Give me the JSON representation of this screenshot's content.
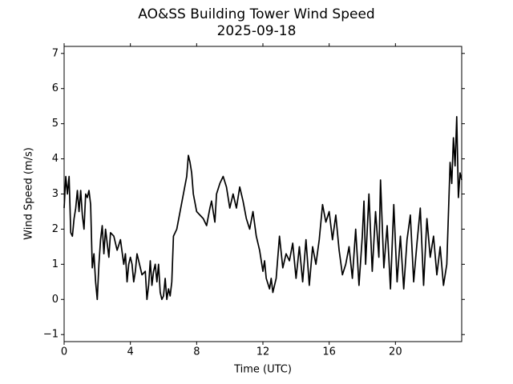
{
  "chart_data": {
    "type": "line",
    "title": "AO&SS Building Tower Wind Speed",
    "subtitle": "2025-09-18",
    "x_label": "Time (UTC)",
    "y_label": "Wind Speed (m/s)",
    "xlim": [
      0,
      24
    ],
    "ylim": [
      -1.2,
      7.2
    ],
    "xticks": [
      0,
      4,
      8,
      12,
      16,
      20
    ],
    "yticks": [
      {
        "value": -1,
        "label": "−1"
      },
      0,
      1,
      2,
      3,
      4,
      5,
      6,
      7
    ],
    "series": [
      {
        "color": "#000000",
        "x": [
          0,
          0.1,
          0.2,
          0.3,
          0.4,
          0.5,
          0.6,
          0.7,
          0.8,
          0.9,
          1.0,
          1.1,
          1.2,
          1.3,
          1.4,
          1.5,
          1.6,
          1.7,
          1.8,
          1.9,
          2.0,
          2.1,
          2.2,
          2.3,
          2.4,
          2.5,
          2.6,
          2.7,
          2.8,
          3.0,
          3.2,
          3.4,
          3.6,
          3.7,
          3.8,
          3.9,
          4.0,
          4.1,
          4.2,
          4.3,
          4.4,
          4.5,
          4.6,
          4.7,
          4.9,
          5.0,
          5.1,
          5.2,
          5.3,
          5.4,
          5.5,
          5.6,
          5.7,
          5.8,
          5.9,
          6.0,
          6.1,
          6.2,
          6.3,
          6.4,
          6.5,
          6.6,
          6.8,
          7.0,
          7.2,
          7.4,
          7.5,
          7.6,
          7.7,
          7.8,
          8.0,
          8.2,
          8.4,
          8.6,
          8.8,
          8.9,
          9.0,
          9.1,
          9.2,
          9.4,
          9.6,
          9.8,
          10.0,
          10.2,
          10.4,
          10.6,
          10.8,
          11.0,
          11.2,
          11.4,
          11.6,
          11.8,
          12.0,
          12.1,
          12.2,
          12.4,
          12.5,
          12.6,
          12.8,
          13.0,
          13.2,
          13.4,
          13.6,
          13.8,
          14.0,
          14.2,
          14.4,
          14.6,
          14.8,
          15.0,
          15.2,
          15.4,
          15.6,
          15.8,
          16.0,
          16.2,
          16.4,
          16.6,
          16.8,
          17.0,
          17.2,
          17.4,
          17.6,
          17.8,
          18.0,
          18.1,
          18.2,
          18.4,
          18.6,
          18.8,
          19.0,
          19.1,
          19.3,
          19.5,
          19.7,
          19.9,
          20.1,
          20.3,
          20.5,
          20.7,
          20.9,
          21.1,
          21.3,
          21.5,
          21.7,
          21.9,
          22.1,
          22.3,
          22.5,
          22.7,
          22.9,
          23.1,
          23.3,
          23.4,
          23.5,
          23.6,
          23.7,
          23.8,
          23.9,
          24.0
        ],
        "values": [
          2.6,
          3.5,
          3.0,
          3.5,
          1.9,
          1.8,
          2.3,
          2.6,
          3.1,
          2.5,
          3.1,
          2.4,
          2.0,
          3.0,
          2.9,
          3.1,
          2.7,
          0.9,
          1.3,
          0.5,
          0.0,
          1.0,
          1.7,
          2.1,
          1.3,
          2.0,
          1.6,
          1.2,
          1.9,
          1.8,
          1.4,
          1.7,
          1.0,
          1.3,
          0.5,
          1.0,
          1.2,
          1.0,
          0.5,
          0.8,
          1.3,
          1.1,
          0.9,
          0.7,
          0.8,
          0.0,
          0.4,
          1.1,
          0.4,
          0.8,
          1.0,
          0.5,
          1.0,
          0.2,
          0.0,
          0.1,
          0.6,
          0.0,
          0.3,
          0.1,
          0.5,
          1.8,
          2.0,
          2.5,
          3.0,
          3.5,
          4.1,
          3.9,
          3.6,
          3.0,
          2.5,
          2.4,
          2.3,
          2.1,
          2.6,
          2.8,
          2.5,
          2.2,
          3.0,
          3.3,
          3.5,
          3.2,
          2.6,
          3.0,
          2.6,
          3.2,
          2.8,
          2.3,
          2.0,
          2.5,
          1.8,
          1.4,
          0.8,
          1.1,
          0.6,
          0.3,
          0.6,
          0.2,
          0.6,
          1.8,
          0.9,
          1.3,
          1.1,
          1.6,
          0.6,
          1.5,
          0.5,
          1.7,
          0.4,
          1.5,
          1.0,
          1.7,
          2.7,
          2.2,
          2.5,
          1.7,
          2.4,
          1.4,
          0.7,
          1.0,
          1.5,
          0.6,
          2.0,
          0.4,
          1.8,
          2.8,
          1.0,
          3.0,
          0.8,
          2.5,
          1.2,
          3.4,
          0.9,
          2.1,
          0.3,
          2.7,
          0.5,
          1.8,
          0.3,
          1.7,
          2.4,
          0.5,
          1.6,
          2.6,
          0.4,
          2.3,
          1.2,
          1.8,
          0.7,
          1.5,
          0.4,
          1.0,
          3.9,
          3.3,
          4.6,
          3.8,
          5.2,
          2.9,
          3.6,
          3.4
        ]
      }
    ]
  }
}
